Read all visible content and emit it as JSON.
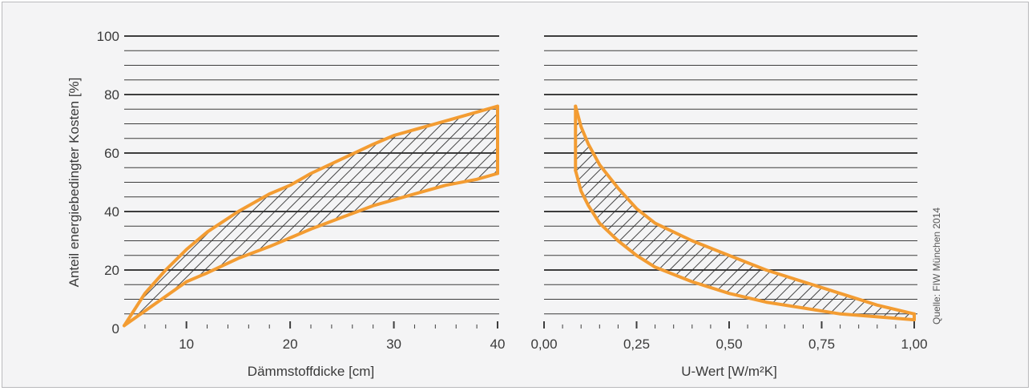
{
  "source_note": "Quelle: FIW München 2014",
  "colors": {
    "curve": "#f39c32",
    "grid": "#3d3d3d",
    "hatch": "#2f2f2f",
    "background": "#f4f4f5"
  },
  "chart_data": [
    {
      "type": "area",
      "xlabel": "Dämmstoffdicke [cm]",
      "ylabel": "Anteil energiebedingter Kosten [%]",
      "xlim": [
        4,
        40
      ],
      "ylim": [
        0,
        100
      ],
      "x_ticks": [
        10,
        20,
        30,
        40
      ],
      "y_ticks": [
        0,
        20,
        40,
        60,
        80,
        100
      ],
      "grid": true,
      "hatched_band": true,
      "series": [
        {
          "x": [
            4,
            6,
            8,
            10,
            12,
            15,
            18,
            20,
            22,
            25,
            28,
            30,
            32,
            35,
            38,
            40
          ],
          "values": [
            1,
            12,
            20,
            27,
            33,
            40,
            46,
            49,
            53,
            58,
            63,
            66,
            68,
            71,
            74,
            76
          ]
        },
        {
          "x": [
            4,
            6,
            8,
            10,
            12,
            15,
            18,
            20,
            22,
            25,
            28,
            30,
            32,
            35,
            38,
            40
          ],
          "values": [
            1,
            6,
            11,
            16,
            19,
            24,
            28,
            31,
            34,
            38,
            42,
            44,
            46,
            49,
            51,
            53
          ]
        }
      ]
    },
    {
      "type": "area",
      "xlabel": "U-Wert [W/m²K]",
      "ylabel": "",
      "xlim": [
        0,
        1.0
      ],
      "ylim": [
        0,
        100
      ],
      "x_ticks": [
        0.0,
        0.25,
        0.5,
        0.75,
        1.0
      ],
      "x_tick_labels": [
        "0,00",
        "0,25",
        "0,50",
        "0,75",
        "1,00"
      ],
      "grid": true,
      "hatched_band": true,
      "series": [
        {
          "x": [
            0.085,
            0.1,
            0.12,
            0.15,
            0.2,
            0.25,
            0.3,
            0.4,
            0.5,
            0.6,
            0.7,
            0.8,
            0.9,
            1.0
          ],
          "values": [
            76,
            69,
            63,
            56,
            48,
            41,
            36,
            30,
            25,
            20,
            16,
            12,
            8,
            5
          ]
        },
        {
          "x": [
            0.085,
            0.1,
            0.12,
            0.15,
            0.2,
            0.25,
            0.3,
            0.4,
            0.5,
            0.6,
            0.7,
            0.8,
            0.9,
            1.0
          ],
          "values": [
            54,
            47,
            42,
            36,
            30,
            25,
            21,
            16,
            12,
            9,
            7,
            5,
            4,
            3
          ]
        }
      ]
    }
  ]
}
